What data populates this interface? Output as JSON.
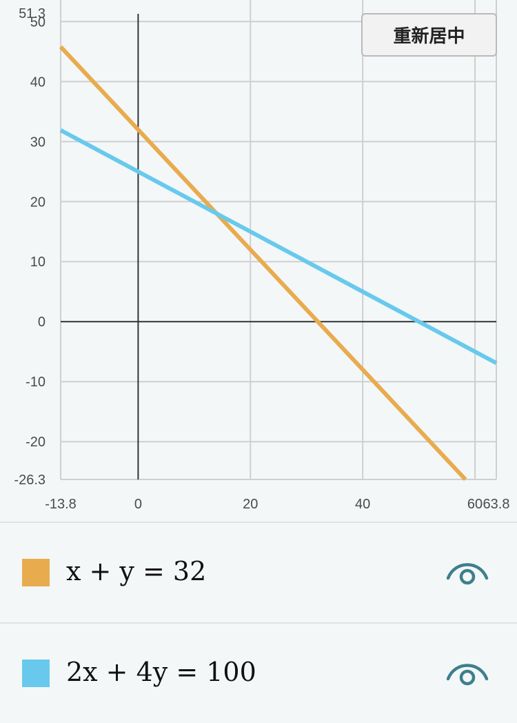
{
  "recenter_button": {
    "label": "重新居中"
  },
  "chart_data": {
    "type": "line",
    "xlim": [
      -13.8,
      63.8
    ],
    "ylim": [
      -26.3,
      51.3
    ],
    "x_ticks": [
      -13.8,
      0,
      20,
      40,
      60,
      63.8
    ],
    "x_tick_labels": [
      "-13.8",
      "0",
      "20",
      "40",
      "60",
      "63.8"
    ],
    "y_ticks": [
      51.3,
      50,
      40,
      30,
      20,
      10,
      0,
      -10,
      -20,
      -26.3
    ],
    "y_tick_labels": [
      "51.3",
      "50",
      "40",
      "30",
      "20",
      "10",
      "0",
      "-10",
      "-20",
      "-26.3"
    ],
    "grid": true,
    "series": [
      {
        "name": "x + y = 32",
        "color": "#e8ab4e",
        "x": [
          -13.8,
          58.3
        ],
        "y": [
          45.8,
          -26.3
        ]
      },
      {
        "name": "2x + 4y = 100",
        "color": "#68c9ec",
        "x": [
          -13.8,
          63.8
        ],
        "y": [
          31.9,
          -6.9
        ]
      }
    ]
  },
  "equations": [
    {
      "text": "x + y = 32",
      "color": "#e8ab4e",
      "icon": "eye-icon"
    },
    {
      "text": "2x + 4y = 100",
      "color": "#68c9ec",
      "icon": "eye-icon"
    }
  ]
}
